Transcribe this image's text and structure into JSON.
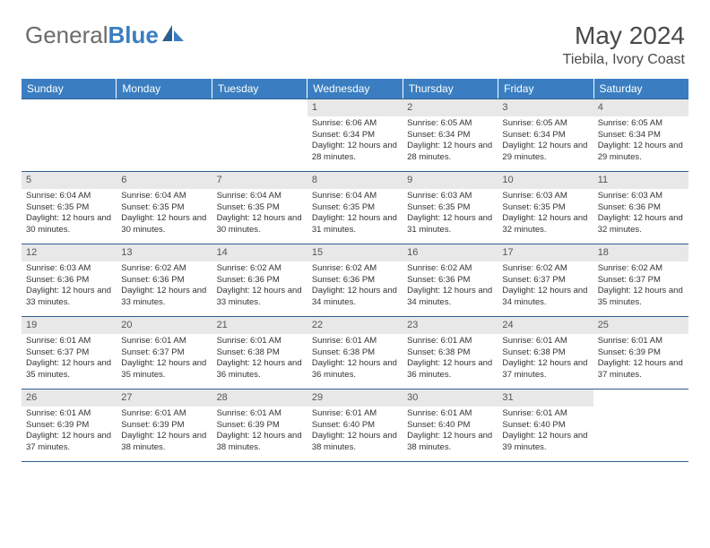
{
  "logo": {
    "text_gray": "General",
    "text_blue": "Blue"
  },
  "title": "May 2024",
  "location": "Tiebila, Ivory Coast",
  "colors": {
    "header_bg": "#3a7ec1",
    "header_text": "#ffffff",
    "daynum_bg": "#e8e8e8",
    "row_border": "#2e5e8f",
    "body_text": "#333333"
  },
  "day_headers": [
    "Sunday",
    "Monday",
    "Tuesday",
    "Wednesday",
    "Thursday",
    "Friday",
    "Saturday"
  ],
  "weeks": [
    [
      {
        "n": "",
        "sr": "",
        "ss": "",
        "dl": ""
      },
      {
        "n": "",
        "sr": "",
        "ss": "",
        "dl": ""
      },
      {
        "n": "",
        "sr": "",
        "ss": "",
        "dl": ""
      },
      {
        "n": "1",
        "sr": "6:06 AM",
        "ss": "6:34 PM",
        "dl": "12 hours and 28 minutes."
      },
      {
        "n": "2",
        "sr": "6:05 AM",
        "ss": "6:34 PM",
        "dl": "12 hours and 28 minutes."
      },
      {
        "n": "3",
        "sr": "6:05 AM",
        "ss": "6:34 PM",
        "dl": "12 hours and 29 minutes."
      },
      {
        "n": "4",
        "sr": "6:05 AM",
        "ss": "6:34 PM",
        "dl": "12 hours and 29 minutes."
      }
    ],
    [
      {
        "n": "5",
        "sr": "6:04 AM",
        "ss": "6:35 PM",
        "dl": "12 hours and 30 minutes."
      },
      {
        "n": "6",
        "sr": "6:04 AM",
        "ss": "6:35 PM",
        "dl": "12 hours and 30 minutes."
      },
      {
        "n": "7",
        "sr": "6:04 AM",
        "ss": "6:35 PM",
        "dl": "12 hours and 30 minutes."
      },
      {
        "n": "8",
        "sr": "6:04 AM",
        "ss": "6:35 PM",
        "dl": "12 hours and 31 minutes."
      },
      {
        "n": "9",
        "sr": "6:03 AM",
        "ss": "6:35 PM",
        "dl": "12 hours and 31 minutes."
      },
      {
        "n": "10",
        "sr": "6:03 AM",
        "ss": "6:35 PM",
        "dl": "12 hours and 32 minutes."
      },
      {
        "n": "11",
        "sr": "6:03 AM",
        "ss": "6:36 PM",
        "dl": "12 hours and 32 minutes."
      }
    ],
    [
      {
        "n": "12",
        "sr": "6:03 AM",
        "ss": "6:36 PM",
        "dl": "12 hours and 33 minutes."
      },
      {
        "n": "13",
        "sr": "6:02 AM",
        "ss": "6:36 PM",
        "dl": "12 hours and 33 minutes."
      },
      {
        "n": "14",
        "sr": "6:02 AM",
        "ss": "6:36 PM",
        "dl": "12 hours and 33 minutes."
      },
      {
        "n": "15",
        "sr": "6:02 AM",
        "ss": "6:36 PM",
        "dl": "12 hours and 34 minutes."
      },
      {
        "n": "16",
        "sr": "6:02 AM",
        "ss": "6:36 PM",
        "dl": "12 hours and 34 minutes."
      },
      {
        "n": "17",
        "sr": "6:02 AM",
        "ss": "6:37 PM",
        "dl": "12 hours and 34 minutes."
      },
      {
        "n": "18",
        "sr": "6:02 AM",
        "ss": "6:37 PM",
        "dl": "12 hours and 35 minutes."
      }
    ],
    [
      {
        "n": "19",
        "sr": "6:01 AM",
        "ss": "6:37 PM",
        "dl": "12 hours and 35 minutes."
      },
      {
        "n": "20",
        "sr": "6:01 AM",
        "ss": "6:37 PM",
        "dl": "12 hours and 35 minutes."
      },
      {
        "n": "21",
        "sr": "6:01 AM",
        "ss": "6:38 PM",
        "dl": "12 hours and 36 minutes."
      },
      {
        "n": "22",
        "sr": "6:01 AM",
        "ss": "6:38 PM",
        "dl": "12 hours and 36 minutes."
      },
      {
        "n": "23",
        "sr": "6:01 AM",
        "ss": "6:38 PM",
        "dl": "12 hours and 36 minutes."
      },
      {
        "n": "24",
        "sr": "6:01 AM",
        "ss": "6:38 PM",
        "dl": "12 hours and 37 minutes."
      },
      {
        "n": "25",
        "sr": "6:01 AM",
        "ss": "6:39 PM",
        "dl": "12 hours and 37 minutes."
      }
    ],
    [
      {
        "n": "26",
        "sr": "6:01 AM",
        "ss": "6:39 PM",
        "dl": "12 hours and 37 minutes."
      },
      {
        "n": "27",
        "sr": "6:01 AM",
        "ss": "6:39 PM",
        "dl": "12 hours and 38 minutes."
      },
      {
        "n": "28",
        "sr": "6:01 AM",
        "ss": "6:39 PM",
        "dl": "12 hours and 38 minutes."
      },
      {
        "n": "29",
        "sr": "6:01 AM",
        "ss": "6:40 PM",
        "dl": "12 hours and 38 minutes."
      },
      {
        "n": "30",
        "sr": "6:01 AM",
        "ss": "6:40 PM",
        "dl": "12 hours and 38 minutes."
      },
      {
        "n": "31",
        "sr": "6:01 AM",
        "ss": "6:40 PM",
        "dl": "12 hours and 39 minutes."
      },
      {
        "n": "",
        "sr": "",
        "ss": "",
        "dl": ""
      }
    ]
  ],
  "labels": {
    "sunrise": "Sunrise:",
    "sunset": "Sunset:",
    "daylight": "Daylight:"
  }
}
